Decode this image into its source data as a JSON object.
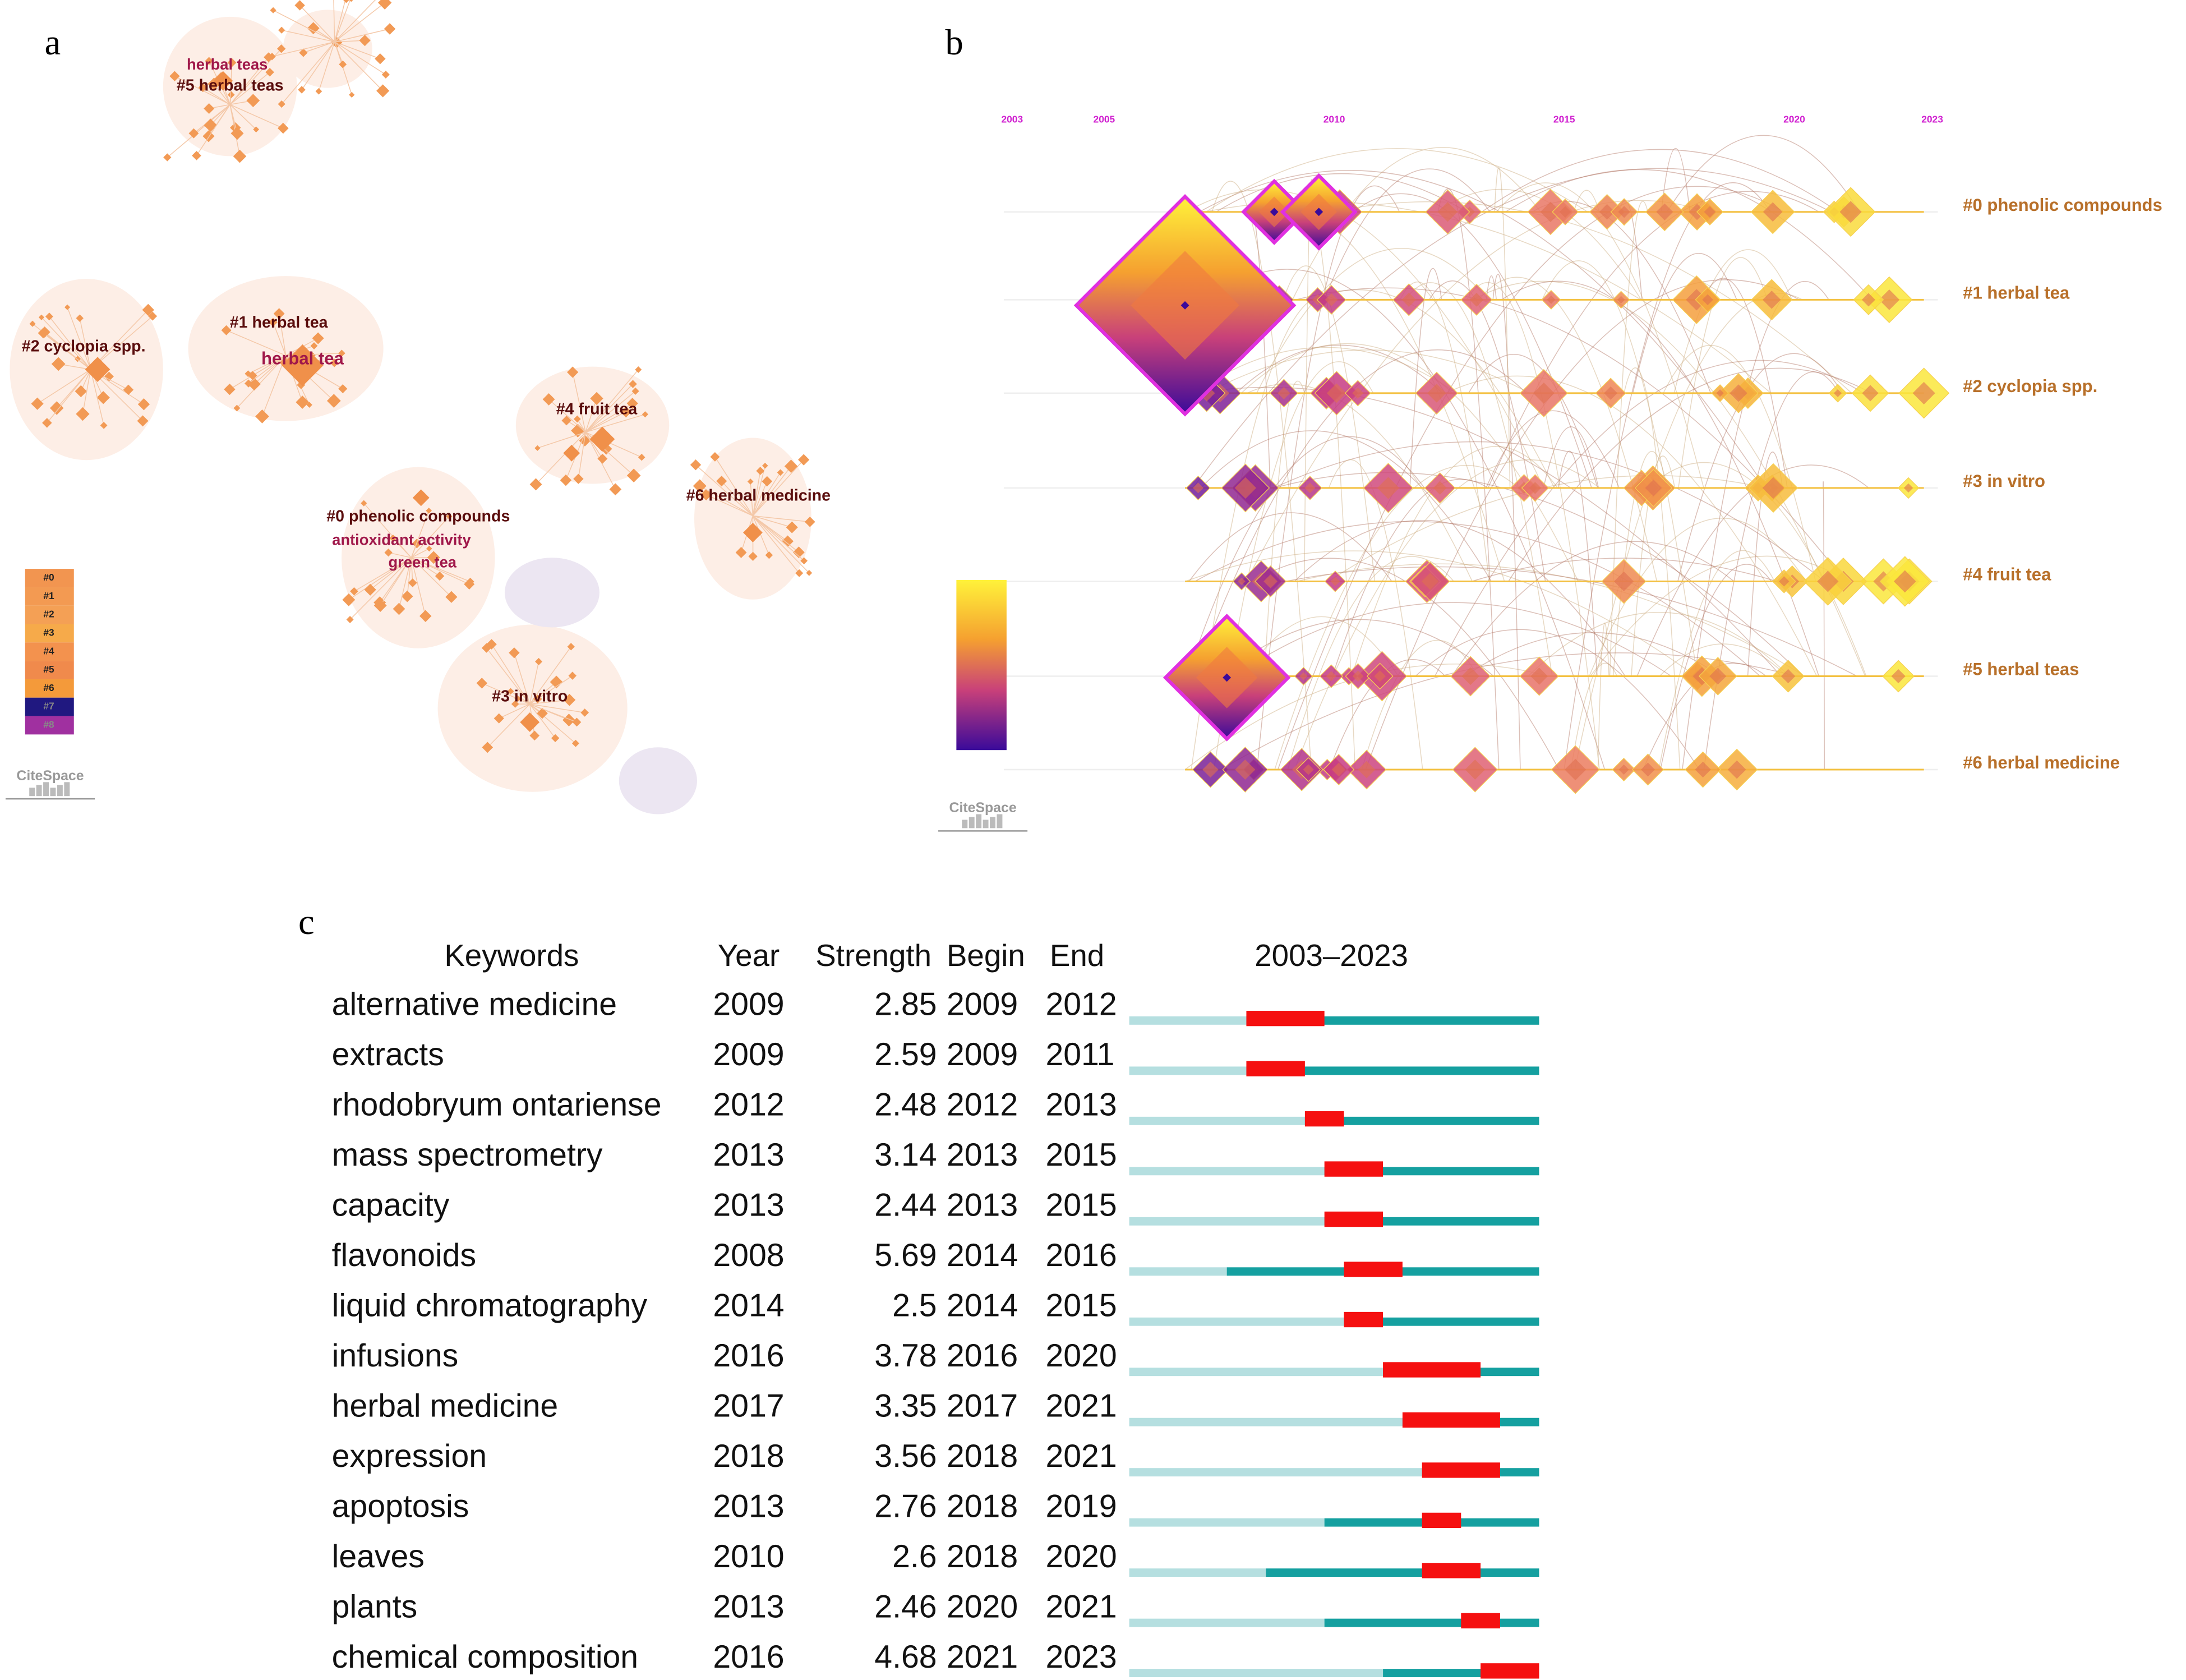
{
  "panel_a": {
    "label": "a",
    "clusters": [
      "herbal teas",
      "#5 herbal teas",
      "#1 herbal tea",
      "herbal tea",
      "#2 cyclopia spp.",
      "#4 fruit tea",
      "#6 herbal medicine",
      "#0 phenolic compounds",
      "antioxidant activity",
      "green tea",
      "#3 in vitro"
    ],
    "legend": [
      "#0",
      "#1",
      "#2",
      "#3",
      "#4",
      "#5",
      "#6",
      "#7",
      "#8"
    ],
    "logo": "CiteSpace"
  },
  "panel_b": {
    "label": "b",
    "years": [
      2003,
      2005,
      2010,
      2015,
      2020,
      2023
    ],
    "clusters": [
      "#0 phenolic compounds",
      "#1 herbal tea",
      "#2 cyclopia spp.",
      "#3 in vitro",
      "#4 fruit tea",
      "#5 herbal teas",
      "#6 herbal medicine"
    ],
    "logo": "CiteSpace"
  },
  "panel_c": {
    "label": "c",
    "headers": {
      "keywords": "Keywords",
      "year": "Year",
      "strength": "Strength",
      "begin": "Begin",
      "end": "End",
      "span": "2003–2023"
    },
    "range": [
      2003,
      2023
    ],
    "rows": [
      {
        "keyword": "alternative medicine",
        "year": 2009,
        "strength": 2.85,
        "begin": 2009,
        "end": 2012
      },
      {
        "keyword": "extracts",
        "year": 2009,
        "strength": 2.59,
        "begin": 2009,
        "end": 2011
      },
      {
        "keyword": "rhodobryum ontariense",
        "year": 2012,
        "strength": 2.48,
        "begin": 2012,
        "end": 2013
      },
      {
        "keyword": "mass spectrometry",
        "year": 2013,
        "strength": 3.14,
        "begin": 2013,
        "end": 2015
      },
      {
        "keyword": "capacity",
        "year": 2013,
        "strength": 2.44,
        "begin": 2013,
        "end": 2015
      },
      {
        "keyword": "flavonoids",
        "year": 2008,
        "strength": 5.69,
        "begin": 2014,
        "end": 2016
      },
      {
        "keyword": "liquid chromatography",
        "year": 2014,
        "strength": 2.5,
        "begin": 2014,
        "end": 2015
      },
      {
        "keyword": "infusions",
        "year": 2016,
        "strength": 3.78,
        "begin": 2016,
        "end": 2020
      },
      {
        "keyword": "herbal medicine",
        "year": 2017,
        "strength": 3.35,
        "begin": 2017,
        "end": 2021
      },
      {
        "keyword": "expression",
        "year": 2018,
        "strength": 3.56,
        "begin": 2018,
        "end": 2021
      },
      {
        "keyword": "apoptosis",
        "year": 2013,
        "strength": 2.76,
        "begin": 2018,
        "end": 2019
      },
      {
        "keyword": "leaves",
        "year": 2010,
        "strength": 2.6,
        "begin": 2018,
        "end": 2020
      },
      {
        "keyword": "plants",
        "year": 2013,
        "strength": 2.46,
        "begin": 2020,
        "end": 2021
      },
      {
        "keyword": "chemical composition",
        "year": 2016,
        "strength": 4.68,
        "begin": 2021,
        "end": 2023
      }
    ]
  }
}
